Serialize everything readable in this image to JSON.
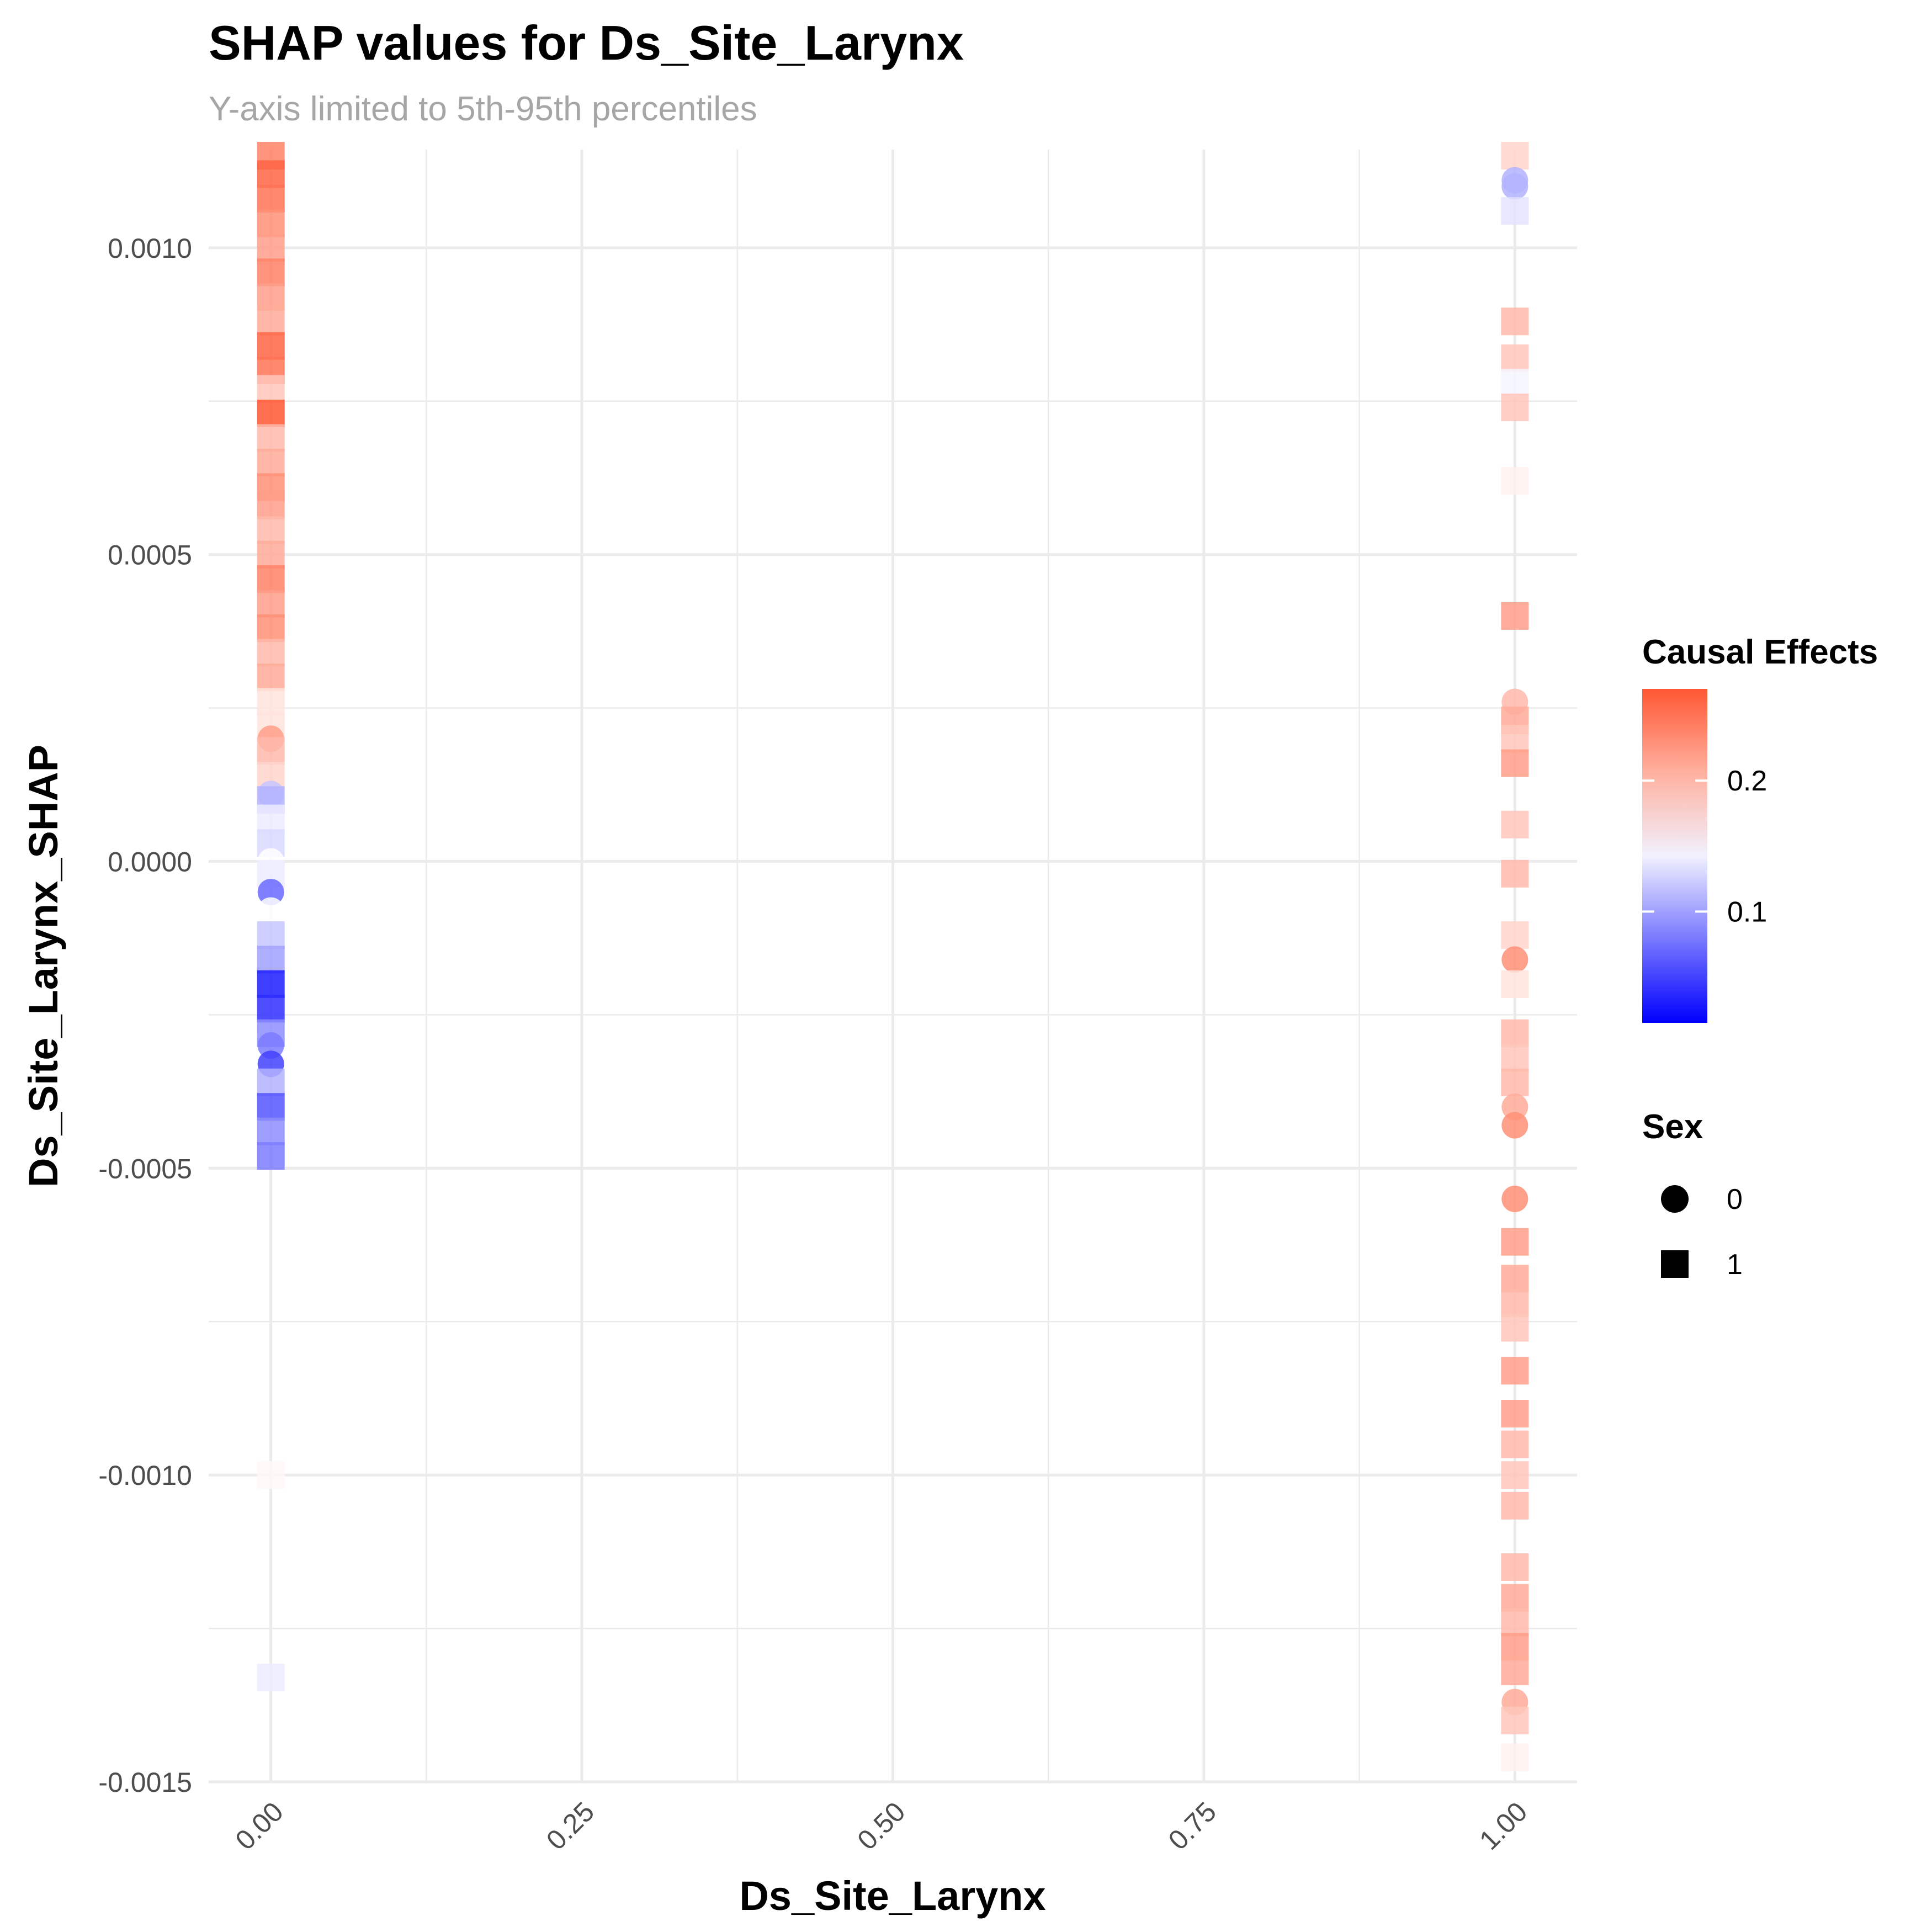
{
  "chart_data": {
    "type": "scatter",
    "title": "SHAP values for Ds_Site_Larynx",
    "subtitle": "Y-axis limited to 5th-95th percentiles",
    "xlabel": "Ds_Site_Larynx",
    "ylabel": "Ds_Site_Larynx_SHAP",
    "xlim": [
      -0.05,
      1.05
    ],
    "ylim": [
      -0.0015,
      0.00116
    ],
    "x_ticks": [
      0.0,
      0.25,
      0.5,
      0.75,
      1.0
    ],
    "x_tick_labels": [
      "0.00",
      "0.25",
      "0.50",
      "0.75",
      "1.00"
    ],
    "y_ticks": [
      0.001,
      0.0005,
      0.0,
      -0.0005,
      -0.001,
      -0.0015
    ],
    "y_tick_labels": [
      "0.0010",
      "0.0005",
      "0.0000",
      "-0.0005",
      "-0.0010",
      "-0.0015"
    ],
    "grid": true,
    "legend_position": "right",
    "color_legend": {
      "title": "Causal Effects",
      "min": 0.015,
      "max": 0.27,
      "mid": 0.15,
      "low_color": "#0000ff",
      "mid_color": "#ffffff",
      "high_color": "#ff5733",
      "ticks": [
        0.2,
        0.1
      ],
      "tick_labels": [
        "0.2",
        "0.1"
      ]
    },
    "shape_legend": {
      "title": "Sex",
      "items": [
        {
          "label": "0",
          "shape": "circle"
        },
        {
          "label": "1",
          "shape": "square"
        }
      ]
    },
    "points": [
      {
        "x": 0,
        "y": 0.00115,
        "c": 0.24,
        "sex": 1
      },
      {
        "x": 0,
        "y": 0.00112,
        "c": 0.26,
        "sex": 1
      },
      {
        "x": 0,
        "y": 0.00108,
        "c": 0.25,
        "sex": 1
      },
      {
        "x": 0,
        "y": 0.00104,
        "c": 0.23,
        "sex": 1
      },
      {
        "x": 0,
        "y": 0.001,
        "c": 0.22,
        "sex": 1
      },
      {
        "x": 0,
        "y": 0.00096,
        "c": 0.24,
        "sex": 1
      },
      {
        "x": 0,
        "y": 0.00092,
        "c": 0.22,
        "sex": 1
      },
      {
        "x": 0,
        "y": 0.00088,
        "c": 0.21,
        "sex": 1
      },
      {
        "x": 0,
        "y": 0.00084,
        "c": 0.26,
        "sex": 1
      },
      {
        "x": 0,
        "y": 0.0008,
        "c": 0.25,
        "sex": 1
      },
      {
        "x": 0,
        "y": 0.00077,
        "c": 0.19,
        "sex": 1
      },
      {
        "x": 0,
        "y": 0.00073,
        "c": 0.27,
        "sex": 1
      },
      {
        "x": 0,
        "y": 0.00069,
        "c": 0.2,
        "sex": 1
      },
      {
        "x": 0,
        "y": 0.00065,
        "c": 0.21,
        "sex": 1
      },
      {
        "x": 0,
        "y": 0.00061,
        "c": 0.23,
        "sex": 1
      },
      {
        "x": 0,
        "y": 0.00058,
        "c": 0.22,
        "sex": 1
      },
      {
        "x": 0,
        "y": 0.00054,
        "c": 0.2,
        "sex": 1
      },
      {
        "x": 0,
        "y": 0.0005,
        "c": 0.21,
        "sex": 1
      },
      {
        "x": 0,
        "y": 0.00046,
        "c": 0.24,
        "sex": 1
      },
      {
        "x": 0,
        "y": 0.00042,
        "c": 0.22,
        "sex": 1
      },
      {
        "x": 0,
        "y": 0.00038,
        "c": 0.23,
        "sex": 1
      },
      {
        "x": 0,
        "y": 0.00034,
        "c": 0.2,
        "sex": 1
      },
      {
        "x": 0,
        "y": 0.0003,
        "c": 0.21,
        "sex": 1
      },
      {
        "x": 0,
        "y": 0.00026,
        "c": 0.17,
        "sex": 1
      },
      {
        "x": 0,
        "y": 0.00022,
        "c": 0.17,
        "sex": 1
      },
      {
        "x": 0,
        "y": 0.0002,
        "c": 0.22,
        "sex": 0
      },
      {
        "x": 0,
        "y": 0.00018,
        "c": 0.2,
        "sex": 1
      },
      {
        "x": 0,
        "y": 0.00014,
        "c": 0.18,
        "sex": 1
      },
      {
        "x": 0,
        "y": 0.00011,
        "c": 0.12,
        "sex": 0
      },
      {
        "x": 0,
        "y": 0.0001,
        "c": 0.11,
        "sex": 1
      },
      {
        "x": 0,
        "y": 7e-05,
        "c": 0.14,
        "sex": 1
      },
      {
        "x": 0,
        "y": 3e-05,
        "c": 0.13,
        "sex": 1
      },
      {
        "x": 0,
        "y": 0.0,
        "c": 0.15,
        "sex": 0
      },
      {
        "x": 0,
        "y": -2e-05,
        "c": 0.14,
        "sex": 1
      },
      {
        "x": 0,
        "y": -5e-05,
        "c": 0.07,
        "sex": 0
      },
      {
        "x": 0,
        "y": -8e-05,
        "c": 0.15,
        "sex": 0
      },
      {
        "x": 0,
        "y": -0.00012,
        "c": 0.12,
        "sex": 1
      },
      {
        "x": 0,
        "y": -0.00016,
        "c": 0.1,
        "sex": 1
      },
      {
        "x": 0,
        "y": -0.0002,
        "c": 0.03,
        "sex": 1
      },
      {
        "x": 0,
        "y": -0.00024,
        "c": 0.04,
        "sex": 1
      },
      {
        "x": 0,
        "y": -0.00028,
        "c": 0.09,
        "sex": 1
      },
      {
        "x": 0,
        "y": -0.0003,
        "c": 0.08,
        "sex": 0
      },
      {
        "x": 0,
        "y": -0.00033,
        "c": 0.05,
        "sex": 0
      },
      {
        "x": 0,
        "y": -0.00036,
        "c": 0.11,
        "sex": 1
      },
      {
        "x": 0,
        "y": -0.0004,
        "c": 0.06,
        "sex": 1
      },
      {
        "x": 0,
        "y": -0.00044,
        "c": 0.09,
        "sex": 1
      },
      {
        "x": 0,
        "y": -0.00048,
        "c": 0.08,
        "sex": 1
      },
      {
        "x": 0,
        "y": -0.001,
        "c": 0.155,
        "sex": 1
      },
      {
        "x": 0,
        "y": -0.00133,
        "c": 0.14,
        "sex": 1
      },
      {
        "x": 1,
        "y": 0.00115,
        "c": 0.18,
        "sex": 1
      },
      {
        "x": 1,
        "y": 0.00111,
        "c": 0.11,
        "sex": 0
      },
      {
        "x": 1,
        "y": 0.0011,
        "c": 0.11,
        "sex": 0
      },
      {
        "x": 1,
        "y": 0.00106,
        "c": 0.135,
        "sex": 1
      },
      {
        "x": 1,
        "y": 0.00088,
        "c": 0.2,
        "sex": 1
      },
      {
        "x": 1,
        "y": 0.00082,
        "c": 0.19,
        "sex": 1
      },
      {
        "x": 1,
        "y": 0.00078,
        "c": 0.145,
        "sex": 1
      },
      {
        "x": 1,
        "y": 0.00074,
        "c": 0.19,
        "sex": 1
      },
      {
        "x": 1,
        "y": 0.00062,
        "c": 0.16,
        "sex": 1
      },
      {
        "x": 1,
        "y": 0.0004,
        "c": 0.22,
        "sex": 1
      },
      {
        "x": 1,
        "y": 0.00026,
        "c": 0.2,
        "sex": 0
      },
      {
        "x": 1,
        "y": 0.00023,
        "c": 0.21,
        "sex": 1
      },
      {
        "x": 1,
        "y": 0.0002,
        "c": 0.19,
        "sex": 1
      },
      {
        "x": 1,
        "y": 0.00016,
        "c": 0.22,
        "sex": 1
      },
      {
        "x": 1,
        "y": 6e-05,
        "c": 0.19,
        "sex": 1
      },
      {
        "x": 1,
        "y": -2e-05,
        "c": 0.2,
        "sex": 1
      },
      {
        "x": 1,
        "y": -0.00012,
        "c": 0.18,
        "sex": 1
      },
      {
        "x": 1,
        "y": -0.00016,
        "c": 0.23,
        "sex": 0
      },
      {
        "x": 1,
        "y": -0.0002,
        "c": 0.17,
        "sex": 1
      },
      {
        "x": 1,
        "y": -0.00028,
        "c": 0.2,
        "sex": 1
      },
      {
        "x": 1,
        "y": -0.00032,
        "c": 0.19,
        "sex": 1
      },
      {
        "x": 1,
        "y": -0.00036,
        "c": 0.2,
        "sex": 1
      },
      {
        "x": 1,
        "y": -0.0004,
        "c": 0.21,
        "sex": 0
      },
      {
        "x": 1,
        "y": -0.00043,
        "c": 0.23,
        "sex": 0
      },
      {
        "x": 1,
        "y": -0.00055,
        "c": 0.23,
        "sex": 0
      },
      {
        "x": 1,
        "y": -0.00062,
        "c": 0.22,
        "sex": 1
      },
      {
        "x": 1,
        "y": -0.00068,
        "c": 0.21,
        "sex": 1
      },
      {
        "x": 1,
        "y": -0.00072,
        "c": 0.2,
        "sex": 1
      },
      {
        "x": 1,
        "y": -0.00076,
        "c": 0.19,
        "sex": 1
      },
      {
        "x": 1,
        "y": -0.00083,
        "c": 0.22,
        "sex": 1
      },
      {
        "x": 1,
        "y": -0.0009,
        "c": 0.22,
        "sex": 1
      },
      {
        "x": 1,
        "y": -0.00095,
        "c": 0.2,
        "sex": 1
      },
      {
        "x": 1,
        "y": -0.001,
        "c": 0.19,
        "sex": 1
      },
      {
        "x": 1,
        "y": -0.00105,
        "c": 0.2,
        "sex": 1
      },
      {
        "x": 1,
        "y": -0.00115,
        "c": 0.2,
        "sex": 1
      },
      {
        "x": 1,
        "y": -0.0012,
        "c": 0.21,
        "sex": 1
      },
      {
        "x": 1,
        "y": -0.00124,
        "c": 0.2,
        "sex": 1
      },
      {
        "x": 1,
        "y": -0.00128,
        "c": 0.22,
        "sex": 1
      },
      {
        "x": 1,
        "y": -0.00132,
        "c": 0.21,
        "sex": 1
      },
      {
        "x": 1,
        "y": -0.00137,
        "c": 0.21,
        "sex": 0
      },
      {
        "x": 1,
        "y": -0.0014,
        "c": 0.19,
        "sex": 1
      },
      {
        "x": 1,
        "y": -0.00146,
        "c": 0.16,
        "sex": 1
      }
    ]
  }
}
